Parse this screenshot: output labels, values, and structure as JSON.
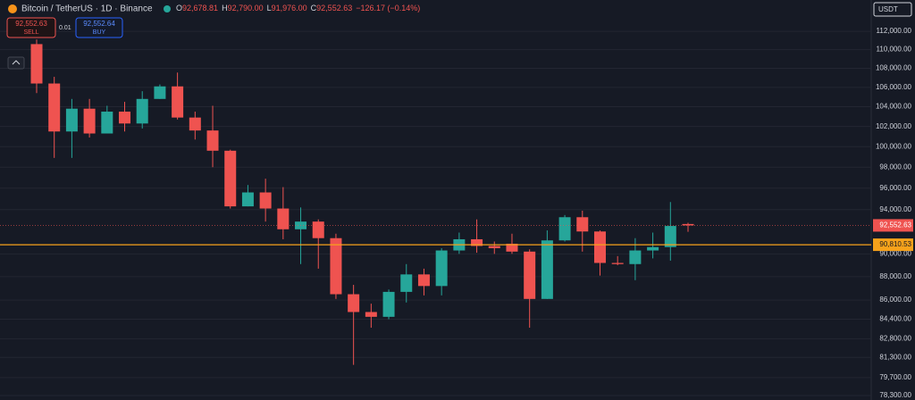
{
  "header": {
    "title": "Bitcoin / TetherUS · 1D · Binance",
    "ohlc": [
      {
        "key": "O",
        "value": "92,678.81"
      },
      {
        "key": "H",
        "value": "92,790.00"
      },
      {
        "key": "L",
        "value": "91,976.00"
      },
      {
        "key": "C",
        "value": "92,552.63"
      }
    ],
    "change": "−126.17 (−0.14%)",
    "sell_price": "92,552.63",
    "sell_label": "SELL",
    "quantity": "0.01",
    "buy_price": "92,552.64",
    "buy_label": "BUY",
    "currency": "USDT"
  },
  "chart_data": {
    "type": "candlestick",
    "log": true,
    "up_color": "#26a69a",
    "down_color": "#ef5350",
    "open": [
      110600,
      106400,
      101500,
      103800,
      101300,
      103500,
      102300,
      104800,
      106100,
      102900,
      101600,
      99600,
      94300,
      95600,
      94100,
      92200,
      92900,
      91400,
      86500,
      85000,
      84600,
      86700,
      88200,
      87200,
      90300,
      91300,
      90700,
      90900,
      90200,
      86100,
      91200,
      93300,
      92000,
      89200,
      89100,
      90300,
      90600,
      92678.81
    ],
    "high": [
      111100,
      107100,
      104800,
      104800,
      104100,
      104500,
      105600,
      106300,
      107550,
      103500,
      104100,
      99700,
      96300,
      96900,
      96100,
      94200,
      93100,
      91800,
      87300,
      85700,
      86900,
      89100,
      88700,
      90500,
      91900,
      93100,
      91100,
      91800,
      90400,
      92100,
      93500,
      93900,
      92100,
      89800,
      91400,
      91900,
      94700,
      92790
    ],
    "low": [
      105400,
      98900,
      98900,
      100900,
      101300,
      101500,
      101800,
      104800,
      102700,
      100700,
      98000,
      94100,
      94300,
      92900,
      91300,
      89100,
      88700,
      86100,
      80700,
      83700,
      84400,
      85800,
      86400,
      86400,
      90000,
      90100,
      90000,
      90000,
      83700,
      86100,
      91100,
      90200,
      88100,
      89000,
      87700,
      89600,
      89400,
      91976
    ],
    "close": [
      106400,
      101500,
      103800,
      101300,
      103500,
      102300,
      104800,
      106100,
      102900,
      101600,
      99600,
      94300,
      95600,
      94100,
      92200,
      92900,
      91400,
      86500,
      85000,
      84600,
      86700,
      88200,
      87200,
      90300,
      91300,
      90700,
      90500,
      90200,
      86100,
      91200,
      93300,
      92000,
      89200,
      89100,
      90300,
      90600,
      92500,
      92552.63
    ],
    "ylim": [
      77960,
      115500
    ],
    "yticks": [
      {
        "value": 112000,
        "label": "112,000.00"
      },
      {
        "value": 110000,
        "label": "110,000.00"
      },
      {
        "value": 108000,
        "label": "108,000.00"
      },
      {
        "value": 106000,
        "label": "106,000.00"
      },
      {
        "value": 104000,
        "label": "104,000.00"
      },
      {
        "value": 102000,
        "label": "102,000.00"
      },
      {
        "value": 100000,
        "label": "100,000.00"
      },
      {
        "value": 98000,
        "label": "98,000.00"
      },
      {
        "value": 96000,
        "label": "96,000.00"
      },
      {
        "value": 94000,
        "label": "94,000.00"
      },
      {
        "value": 90000,
        "label": "90,000.00"
      },
      {
        "value": 88000,
        "label": "88,000.00"
      },
      {
        "value": 86000,
        "label": "86,000.00"
      },
      {
        "value": 84400,
        "label": "84,400.00"
      },
      {
        "value": 82800,
        "label": "82,800.00"
      },
      {
        "value": 81300,
        "label": "81,300.00"
      },
      {
        "value": 79700,
        "label": "79,700.00"
      },
      {
        "value": 78300,
        "label": "78,300.00"
      }
    ],
    "grid": true,
    "last_price": {
      "value": 92552.63,
      "label": "92,552.63"
    },
    "horizontal_line": {
      "value": 90810.53,
      "label": "90,810.53",
      "color": "#f7a21b"
    }
  }
}
